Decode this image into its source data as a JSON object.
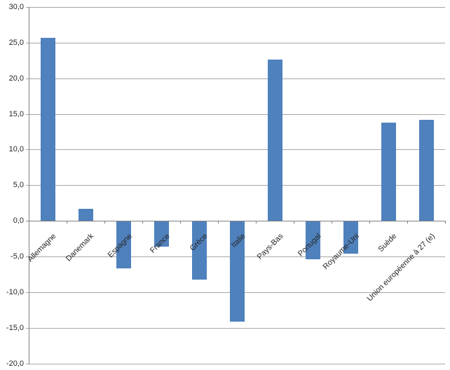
{
  "chart_data": {
    "type": "bar",
    "title": "",
    "xlabel": "",
    "ylabel": "",
    "categories": [
      "Allemagne",
      "Danemark",
      "Espagne",
      "France",
      "Grèce",
      "Italie",
      "Pays-Bas",
      "Portugal",
      "Royaume-Uni",
      "Suède",
      "Union européenne à 27 (e)"
    ],
    "values": [
      25.7,
      1.7,
      -6.6,
      -3.5,
      -8.2,
      -14.1,
      22.6,
      -5.3,
      -4.5,
      13.8,
      14.2
    ],
    "ylim": [
      -20,
      30
    ],
    "ytick_values": [
      30,
      25,
      20,
      15,
      10,
      5,
      0,
      -5,
      -10,
      -15,
      -20
    ],
    "ytick_labels": [
      "30,0",
      "25,0",
      "20,0",
      "15,0",
      "10,0",
      "5,0",
      "0,0",
      "-5,0",
      "-10,0",
      "-15,0",
      "-20,0"
    ],
    "decimal_style": "comma",
    "grid": true,
    "legend_position": "none",
    "bar_color": "#4F81BD",
    "gridline_color": "#A6A6A6",
    "axis_color": "#7F7F7F",
    "text_color": "#262626",
    "background_color": "#FFFFFF"
  }
}
